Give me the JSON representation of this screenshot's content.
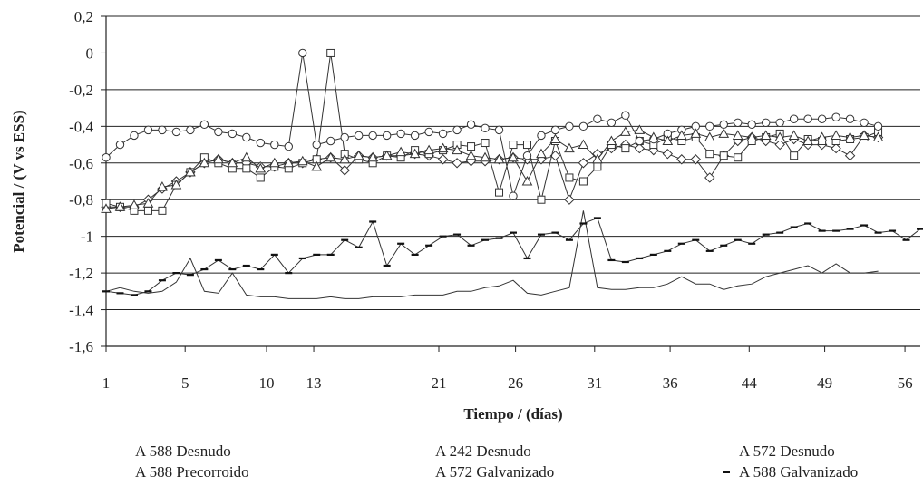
{
  "chart_data": {
    "type": "line",
    "xlabel": "Tiempo / (días)",
    "ylabel": "Potencial / (V vs ESS)",
    "ylim": [
      -1.6,
      0.2
    ],
    "y_ticks": [
      "0,2",
      "0",
      "-0,2",
      "-0,4",
      "-0,6",
      "-0,8",
      "-1",
      "-1,2",
      "-1,4",
      "-1,6"
    ],
    "x_tick_labels": [
      "1",
      "5",
      "10",
      "13",
      "21",
      "26",
      "31",
      "36",
      "44",
      "49",
      "56"
    ],
    "grid": "horizontal",
    "legend_position": "bottom",
    "x_note": "x values are measurement order (ticks placed at measurement positions)",
    "series": [
      {
        "name": "A 588 Desnudo",
        "marker": "diamond",
        "x": [
          1,
          2,
          3,
          4,
          5,
          6,
          7,
          8,
          9,
          10,
          11,
          12,
          13,
          14,
          15,
          16,
          17,
          18,
          19,
          20,
          21,
          22,
          23,
          24,
          25,
          26,
          27,
          28,
          29,
          30,
          31,
          32,
          33,
          34,
          35,
          36,
          37,
          38,
          39,
          40,
          41,
          42,
          43,
          44,
          45,
          46,
          47,
          48,
          49,
          50,
          51,
          52,
          53,
          54,
          55,
          56
        ],
        "y": [
          -0.84,
          -0.84,
          -0.84,
          -0.8,
          -0.74,
          -0.7,
          -0.65,
          -0.6,
          -0.58,
          -0.6,
          -0.6,
          -0.62,
          -0.62,
          -0.6,
          -0.6,
          -0.58,
          -0.57,
          -0.64,
          -0.56,
          -0.57,
          -0.56,
          -0.56,
          -0.55,
          -0.56,
          -0.58,
          -0.6,
          -0.59,
          -0.59,
          -0.58,
          -0.57,
          -0.58,
          -0.58,
          -0.56,
          -0.8,
          -0.6,
          -0.55,
          -0.52,
          -0.5,
          -0.52,
          -0.53,
          -0.55,
          -0.58,
          -0.58,
          -0.68,
          -0.56,
          -0.48,
          -0.46,
          -0.48,
          -0.5,
          -0.47,
          -0.5,
          -0.5,
          -0.52,
          -0.56,
          -0.45,
          -0.46
        ]
      },
      {
        "name": "A 588 Precorroido",
        "marker": "square",
        "x": [
          1,
          2,
          3,
          4,
          5,
          6,
          7,
          8,
          9,
          10,
          11,
          12,
          13,
          14,
          15,
          16,
          17,
          18,
          19,
          20,
          21,
          22,
          23,
          24,
          25,
          26,
          27,
          28,
          29,
          30,
          31,
          32,
          33,
          34,
          35,
          36,
          37,
          38,
          39,
          40,
          41,
          42,
          43,
          44,
          45,
          46,
          47,
          48,
          49,
          50,
          51,
          52,
          53,
          54,
          55,
          56
        ],
        "y": [
          -0.82,
          -0.84,
          -0.86,
          -0.86,
          -0.86,
          -0.72,
          -0.65,
          -0.57,
          -0.6,
          -0.63,
          -0.63,
          -0.68,
          -0.62,
          -0.63,
          -0.6,
          -0.58,
          -0.0,
          -0.55,
          -0.58,
          -0.6,
          -0.56,
          -0.57,
          -0.53,
          -0.55,
          -0.53,
          -0.5,
          -0.51,
          -0.49,
          -0.76,
          -0.5,
          -0.5,
          -0.8,
          -0.48,
          -0.68,
          -0.7,
          -0.62,
          -0.5,
          -0.52,
          -0.48,
          -0.5,
          -0.46,
          -0.48,
          -0.46,
          -0.55,
          -0.56,
          -0.57,
          -0.48,
          -0.46,
          -0.44,
          -0.56,
          -0.47,
          -0.48,
          -0.48,
          -0.47,
          -0.46,
          -0.43
        ]
      },
      {
        "name": "A 242 Desnudo",
        "marker": "circle",
        "x": [
          1,
          2,
          3,
          4,
          5,
          6,
          7,
          8,
          9,
          10,
          11,
          12,
          13,
          14,
          15,
          16,
          17,
          18,
          19,
          20,
          21,
          22,
          23,
          24,
          25,
          26,
          27,
          28,
          29,
          30,
          31,
          32,
          33,
          34,
          35,
          36,
          37,
          38,
          39,
          40,
          41,
          42,
          43,
          44,
          45,
          46,
          47,
          48,
          49,
          50,
          51,
          52,
          53,
          54,
          55,
          56
        ],
        "y": [
          -0.57,
          -0.5,
          -0.45,
          -0.42,
          -0.42,
          -0.43,
          -0.42,
          -0.39,
          -0.43,
          -0.44,
          -0.46,
          -0.49,
          -0.5,
          -0.51,
          -0.0,
          -0.5,
          -0.48,
          -0.46,
          -0.45,
          -0.45,
          -0.45,
          -0.44,
          -0.45,
          -0.43,
          -0.44,
          -0.42,
          -0.39,
          -0.41,
          -0.42,
          -0.78,
          -0.56,
          -0.45,
          -0.42,
          -0.4,
          -0.4,
          -0.36,
          -0.38,
          -0.34,
          -0.48,
          -0.47,
          -0.44,
          -0.42,
          -0.4,
          -0.4,
          -0.39,
          -0.38,
          -0.39,
          -0.38,
          -0.38,
          -0.36,
          -0.36,
          -0.36,
          -0.35,
          -0.36,
          -0.38,
          -0.4
        ]
      },
      {
        "name": "A 572 Galvanizado",
        "marker": "triangle",
        "x": [
          1,
          2,
          3,
          4,
          5,
          6,
          7,
          8,
          9,
          10,
          11,
          12,
          13,
          14,
          15,
          16,
          17,
          18,
          19,
          20,
          21,
          22,
          23,
          24,
          25,
          26,
          27,
          28,
          29,
          30,
          31,
          32,
          33,
          34,
          35,
          36,
          37,
          38,
          39,
          40,
          41,
          42,
          43,
          44,
          45,
          46,
          47,
          48,
          49,
          50,
          51,
          52,
          53,
          54,
          55,
          56
        ],
        "y": [
          -0.85,
          -0.84,
          -0.83,
          -0.82,
          -0.73,
          -0.72,
          -0.65,
          -0.6,
          -0.58,
          -0.6,
          -0.57,
          -0.63,
          -0.6,
          -0.6,
          -0.59,
          -0.62,
          -0.57,
          -0.58,
          -0.56,
          -0.57,
          -0.56,
          -0.54,
          -0.55,
          -0.53,
          -0.52,
          -0.53,
          -0.56,
          -0.57,
          -0.58,
          -0.57,
          -0.7,
          -0.55,
          -0.47,
          -0.52,
          -0.5,
          -0.58,
          -0.48,
          -0.43,
          -0.42,
          -0.46,
          -0.48,
          -0.45,
          -0.44,
          -0.46,
          -0.44,
          -0.45,
          -0.46,
          -0.45,
          -0.46,
          -0.45,
          -0.48,
          -0.46,
          -0.45,
          -0.46,
          -0.45,
          -0.46
        ]
      },
      {
        "name": "A 572 Desnudo",
        "marker": "none",
        "x": [
          1,
          2,
          3,
          4,
          5,
          6,
          7,
          8,
          9,
          10,
          11,
          12,
          13,
          14,
          15,
          16,
          17,
          18,
          19,
          20,
          21,
          22,
          23,
          24,
          25,
          26,
          27,
          28,
          29,
          30,
          31,
          32,
          33,
          34,
          35,
          36,
          37,
          38,
          39,
          40,
          41,
          42,
          43,
          44,
          45,
          46,
          47,
          48,
          49,
          50,
          51,
          52,
          53,
          54,
          55,
          56
        ],
        "y": [
          -1.3,
          -1.28,
          -1.3,
          -1.31,
          -1.3,
          -1.25,
          -1.12,
          -1.3,
          -1.31,
          -1.2,
          -1.32,
          -1.33,
          -1.33,
          -1.34,
          -1.34,
          -1.34,
          -1.33,
          -1.34,
          -1.34,
          -1.33,
          -1.33,
          -1.33,
          -1.32,
          -1.32,
          -1.32,
          -1.3,
          -1.3,
          -1.28,
          -1.27,
          -1.24,
          -1.31,
          -1.32,
          -1.3,
          -1.28,
          -0.86,
          -1.28,
          -1.29,
          -1.29,
          -1.28,
          -1.28,
          -1.26,
          -1.22,
          -1.26,
          -1.26,
          -1.29,
          -1.27,
          -1.26,
          -1.22,
          -1.2,
          -1.18,
          -1.16,
          -1.2,
          -1.15,
          -1.2,
          -1.2,
          -1.19
        ]
      },
      {
        "name": "A 588 Galvanizado",
        "marker": "dash",
        "x": [
          1,
          2,
          3,
          4,
          5,
          6,
          7,
          8,
          9,
          10,
          11,
          12,
          13,
          14,
          15,
          16,
          17,
          18,
          19,
          20,
          21,
          22,
          23,
          24,
          25,
          26,
          27,
          28,
          29,
          30,
          31,
          32,
          33,
          34,
          35,
          36,
          37,
          38,
          39,
          40,
          41,
          42,
          43,
          44,
          45,
          46,
          47,
          48,
          49,
          50,
          51,
          52,
          53,
          54,
          55,
          56,
          57,
          58,
          59
        ],
        "y": [
          -1.3,
          -1.31,
          -1.32,
          -1.3,
          -1.24,
          -1.2,
          -1.21,
          -1.18,
          -1.13,
          -1.18,
          -1.16,
          -1.18,
          -1.1,
          -1.2,
          -1.12,
          -1.1,
          -1.1,
          -1.02,
          -1.06,
          -0.92,
          -1.16,
          -1.04,
          -1.1,
          -1.05,
          -1.0,
          -0.99,
          -1.05,
          -1.02,
          -1.01,
          -0.98,
          -1.12,
          -0.99,
          -0.98,
          -1.02,
          -0.93,
          -0.9,
          -1.13,
          -1.14,
          -1.12,
          -1.1,
          -1.08,
          -1.04,
          -1.02,
          -1.08,
          -1.05,
          -1.02,
          -1.04,
          -0.99,
          -0.98,
          -0.95,
          -0.93,
          -0.97,
          -0.97,
          -0.96,
          -0.94,
          -0.98,
          -0.97,
          -1.02,
          -0.96
        ]
      }
    ]
  }
}
